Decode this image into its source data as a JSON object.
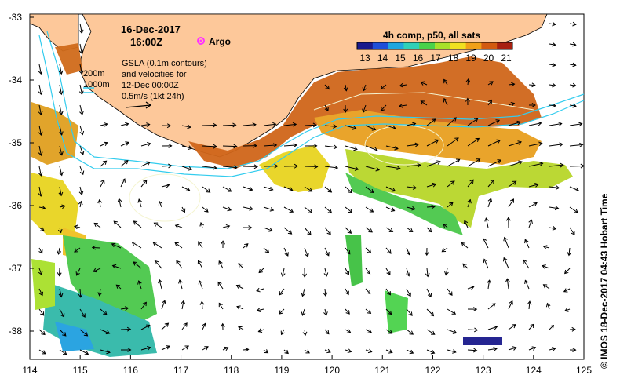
{
  "header": {
    "date_line1": "16-Dec-2017",
    "date_line2": "16:00Z",
    "argo_label": "Argo"
  },
  "legend": {
    "line1": "GSLA (0.1m contours)",
    "line2": "and velocities for",
    "line3": "12-Dec 00:00Z",
    "line4": "0.5m/s (1kt 24h)",
    "depth_200": "200m",
    "depth_1000": "1000m"
  },
  "colorbar": {
    "title": "4h comp, p50, all sats",
    "ticks": [
      "13",
      "14",
      "15",
      "16",
      "17",
      "18",
      "19",
      "20",
      "21"
    ]
  },
  "axes": {
    "x_ticks": [
      "114",
      "115",
      "116",
      "117",
      "118",
      "119",
      "120",
      "121",
      "122",
      "123",
      "124",
      "125"
    ],
    "y_ticks": [
      "-33",
      "-34",
      "-35",
      "-36",
      "-37",
      "-38"
    ]
  },
  "credit": "IMOS 18-Dec-2017 04:43 Hobart Time",
  "credit_symbol": "©",
  "colors": {
    "land": "#FDC89A",
    "bathymetry_lines": "#33CCEE",
    "argo_marker": "#FF33FF",
    "colormap": [
      "#1a1a8c",
      "#1f4fd8",
      "#1fa6e0",
      "#2fd0b8",
      "#4ad24a",
      "#a8e02a",
      "#f0e020",
      "#f0a018",
      "#d25a10",
      "#a82010"
    ]
  }
}
